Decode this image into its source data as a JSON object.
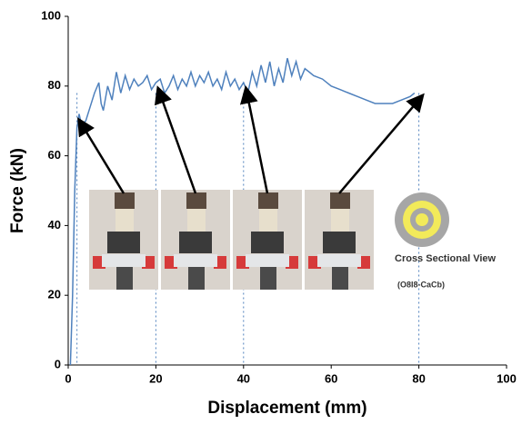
{
  "chart_data": {
    "type": "line",
    "x_label": "Displacement (mm)",
    "y_label": "Force (kN)",
    "xlim": [
      0,
      100
    ],
    "xticks": [
      0,
      20,
      40,
      60,
      80,
      100
    ],
    "ylim": [
      0,
      100
    ],
    "yticks": [
      0,
      20,
      40,
      60,
      80,
      100
    ],
    "grid": false,
    "guide_lines_x": [
      2,
      20,
      40,
      80
    ],
    "annotations": [
      "Cross Sectional View",
      "(O8I8-CaCb)"
    ],
    "series": [
      {
        "color": "#4f81bd",
        "x": [
          0.5,
          1,
          1.5,
          2,
          2.5,
          3,
          4,
          5,
          6,
          7,
          7.5,
          8,
          9,
          10,
          11,
          12,
          13,
          14,
          15,
          16,
          17,
          18,
          19,
          20,
          21,
          22,
          23,
          24,
          25,
          26,
          27,
          28,
          29,
          30,
          31,
          32,
          33,
          34,
          35,
          36,
          37,
          38,
          39,
          40,
          41,
          42,
          43,
          44,
          45,
          46,
          47,
          48,
          49,
          50,
          51,
          52,
          53,
          54,
          55,
          56,
          58,
          60,
          62,
          64,
          66,
          68,
          70,
          72,
          74,
          76,
          78,
          79
        ],
        "values": [
          0,
          20,
          50,
          68,
          72,
          69,
          70,
          74,
          78,
          81,
          75,
          73,
          80,
          76,
          84,
          78,
          83,
          79,
          82,
          80,
          81,
          83,
          79,
          81,
          82,
          78,
          80,
          83,
          79,
          82,
          80,
          84,
          80,
          83,
          81,
          84,
          80,
          82,
          79,
          84,
          80,
          82,
          79,
          81,
          78,
          84,
          80,
          86,
          81,
          87,
          80,
          85,
          81,
          88,
          83,
          87,
          82,
          85,
          84,
          83,
          82,
          80,
          79,
          78,
          77,
          76,
          75,
          75,
          75,
          76,
          77,
          78
        ]
      }
    ]
  }
}
